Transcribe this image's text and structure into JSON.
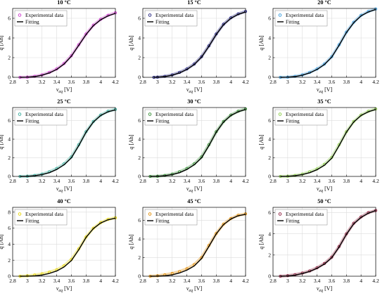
{
  "chart_data": [
    {
      "type": "scatter",
      "title": "10 °C",
      "xlabel": "v_eq [V]",
      "ylabel": "q [Ah]",
      "x_ticks": [
        "2.8",
        "3",
        "3.2",
        "3.4",
        "3.6",
        "3.8",
        "4",
        "4.2"
      ],
      "y_ticks": [
        "0",
        "2",
        "4",
        "6"
      ],
      "xlim": [
        2.8,
        4.2
      ],
      "ylim": [
        0,
        7
      ],
      "legend": [
        "Experimental data",
        "Fitting"
      ],
      "legend_position": "top-left",
      "marker_color": "#cc33cc",
      "grid": true,
      "series": [
        {
          "name": "Experimental data",
          "x": [
            2.9,
            3.0,
            3.1,
            3.2,
            3.3,
            3.4,
            3.5,
            3.6,
            3.7,
            3.8,
            3.9,
            4.0,
            4.1,
            4.2
          ],
          "y": [
            0.0,
            0.02,
            0.1,
            0.25,
            0.5,
            0.85,
            1.4,
            2.2,
            3.3,
            4.4,
            5.3,
            5.9,
            6.3,
            6.55
          ]
        },
        {
          "name": "Fitting",
          "x": [
            2.9,
            3.0,
            3.1,
            3.2,
            3.3,
            3.4,
            3.5,
            3.6,
            3.7,
            3.8,
            3.9,
            4.0,
            4.1,
            4.2
          ],
          "y": [
            0.0,
            0.01,
            0.08,
            0.22,
            0.45,
            0.8,
            1.35,
            2.15,
            3.25,
            4.35,
            5.25,
            5.85,
            6.25,
            6.5
          ]
        }
      ]
    },
    {
      "type": "scatter",
      "title": "15 °C",
      "xlabel": "v_eq [V]",
      "ylabel": "q [Ah]",
      "x_ticks": [
        "2.8",
        "3",
        "3.2",
        "3.4",
        "3.6",
        "3.8",
        "4",
        "4.2"
      ],
      "y_ticks": [
        "0",
        "2",
        "4",
        "6"
      ],
      "xlim": [
        2.8,
        4.2
      ],
      "ylim": [
        0,
        7
      ],
      "legend": [
        "Experimental data",
        "Fitting"
      ],
      "legend_position": "top-left",
      "marker_color": "#1a1a7a",
      "grid": true,
      "series": [
        {
          "name": "Experimental data",
          "x": [
            2.95,
            3.0,
            3.1,
            3.2,
            3.3,
            3.4,
            3.5,
            3.6,
            3.7,
            3.8,
            3.9,
            4.0,
            4.1,
            4.2
          ],
          "y": [
            0.0,
            0.02,
            0.1,
            0.25,
            0.5,
            0.85,
            1.35,
            2.1,
            3.2,
            4.4,
            5.4,
            6.05,
            6.45,
            6.7
          ]
        },
        {
          "name": "Fitting",
          "x": [
            2.95,
            3.0,
            3.1,
            3.2,
            3.3,
            3.4,
            3.5,
            3.6,
            3.7,
            3.8,
            3.9,
            4.0,
            4.1,
            4.2
          ],
          "y": [
            0.0,
            0.01,
            0.08,
            0.22,
            0.45,
            0.8,
            1.3,
            2.05,
            3.15,
            4.35,
            5.35,
            6.0,
            6.4,
            6.65
          ]
        }
      ]
    },
    {
      "type": "scatter",
      "title": "20 °C",
      "xlabel": "v_eq [V]",
      "ylabel": "q [Ah]",
      "x_ticks": [
        "2.8",
        "3",
        "3.2",
        "3.4",
        "3.6",
        "3.8",
        "4",
        "4.2"
      ],
      "y_ticks": [
        "0",
        "2",
        "4",
        "6"
      ],
      "xlim": [
        2.8,
        4.2
      ],
      "ylim": [
        0,
        7
      ],
      "legend": [
        "Experimental data",
        "Fitting"
      ],
      "legend_position": "top-left",
      "marker_color": "#3399dd",
      "grid": true,
      "series": [
        {
          "name": "Experimental data",
          "x": [
            2.9,
            3.0,
            3.1,
            3.2,
            3.3,
            3.4,
            3.5,
            3.6,
            3.7,
            3.8,
            3.9,
            4.0,
            4.1,
            4.2
          ],
          "y": [
            0.0,
            0.02,
            0.1,
            0.25,
            0.5,
            0.85,
            1.35,
            2.1,
            3.3,
            4.6,
            5.6,
            6.3,
            6.7,
            6.95
          ]
        },
        {
          "name": "Fitting",
          "x": [
            2.9,
            3.0,
            3.1,
            3.2,
            3.3,
            3.4,
            3.5,
            3.6,
            3.7,
            3.8,
            3.9,
            4.0,
            4.1,
            4.2
          ],
          "y": [
            0.0,
            0.01,
            0.08,
            0.22,
            0.45,
            0.8,
            1.3,
            2.05,
            3.25,
            4.55,
            5.55,
            6.25,
            6.65,
            6.9
          ]
        }
      ]
    },
    {
      "type": "scatter",
      "title": "25 °C",
      "xlabel": "v_eq [V]",
      "ylabel": "q [Ah]",
      "x_ticks": [
        "2.8",
        "3",
        "3.2",
        "3.4",
        "3.6",
        "3.8",
        "4",
        "4.2"
      ],
      "y_ticks": [
        "0",
        "2",
        "4",
        "6"
      ],
      "xlim": [
        2.8,
        4.2
      ],
      "ylim": [
        0,
        7.4
      ],
      "legend": [
        "Experimental data",
        "Fitting"
      ],
      "legend_position": "top-left",
      "marker_color": "#33aa99",
      "grid": true,
      "series": [
        {
          "name": "Experimental data",
          "x": [
            2.9,
            3.0,
            3.1,
            3.2,
            3.3,
            3.4,
            3.5,
            3.6,
            3.7,
            3.8,
            3.9,
            4.0,
            4.1,
            4.2
          ],
          "y": [
            0.0,
            0.02,
            0.1,
            0.25,
            0.5,
            0.85,
            1.35,
            2.1,
            3.4,
            4.8,
            5.9,
            6.6,
            7.0,
            7.2
          ]
        },
        {
          "name": "Fitting",
          "x": [
            2.9,
            3.0,
            3.1,
            3.2,
            3.3,
            3.4,
            3.5,
            3.6,
            3.7,
            3.8,
            3.9,
            4.0,
            4.1,
            4.2
          ],
          "y": [
            0.0,
            0.01,
            0.08,
            0.2,
            0.4,
            0.75,
            1.25,
            2.0,
            3.3,
            4.75,
            5.85,
            6.55,
            6.95,
            7.15
          ]
        }
      ]
    },
    {
      "type": "scatter",
      "title": "30 °C",
      "xlabel": "v_eq [V]",
      "ylabel": "q [Ah]",
      "x_ticks": [
        "2.8",
        "3",
        "3.2",
        "3.4",
        "3.6",
        "3.8",
        "4",
        "4.2"
      ],
      "y_ticks": [
        "0",
        "2",
        "4",
        "6"
      ],
      "xlim": [
        2.8,
        4.2
      ],
      "ylim": [
        0,
        7.4
      ],
      "legend": [
        "Experimental data",
        "Fitting"
      ],
      "legend_position": "top-left",
      "marker_color": "#2e8b2e",
      "grid": true,
      "series": [
        {
          "name": "Experimental data",
          "x": [
            2.9,
            3.0,
            3.1,
            3.2,
            3.3,
            3.4,
            3.5,
            3.6,
            3.7,
            3.8,
            3.9,
            4.0,
            4.1,
            4.2
          ],
          "y": [
            0.0,
            0.02,
            0.1,
            0.25,
            0.5,
            0.85,
            1.35,
            2.1,
            3.4,
            4.8,
            5.9,
            6.6,
            7.0,
            7.25
          ]
        },
        {
          "name": "Fitting",
          "x": [
            2.9,
            3.0,
            3.1,
            3.2,
            3.3,
            3.4,
            3.5,
            3.6,
            3.7,
            3.8,
            3.9,
            4.0,
            4.1,
            4.2
          ],
          "y": [
            0.0,
            0.01,
            0.08,
            0.2,
            0.4,
            0.75,
            1.25,
            2.0,
            3.3,
            4.75,
            5.85,
            6.55,
            6.95,
            7.2
          ]
        }
      ]
    },
    {
      "type": "scatter",
      "title": "35 °C",
      "xlabel": "v_eq [V]",
      "ylabel": "q [Ah]",
      "x_ticks": [
        "2.8",
        "3",
        "3.2",
        "3.4",
        "3.6",
        "3.8",
        "4",
        "4.2"
      ],
      "y_ticks": [
        "0",
        "2",
        "4",
        "6"
      ],
      "xlim": [
        2.8,
        4.2
      ],
      "ylim": [
        0,
        7.4
      ],
      "legend": [
        "Experimental data",
        "Fitting"
      ],
      "legend_position": "top-left",
      "marker_color": "#88cc44",
      "grid": true,
      "series": [
        {
          "name": "Experimental data",
          "x": [
            2.9,
            3.0,
            3.1,
            3.2,
            3.3,
            3.4,
            3.5,
            3.6,
            3.7,
            3.8,
            3.9,
            4.0,
            4.1,
            4.2
          ],
          "y": [
            0.0,
            0.02,
            0.1,
            0.25,
            0.5,
            0.8,
            1.3,
            2.05,
            3.4,
            4.8,
            5.9,
            6.6,
            7.0,
            7.25
          ]
        },
        {
          "name": "Fitting",
          "x": [
            2.9,
            3.0,
            3.1,
            3.2,
            3.3,
            3.4,
            3.5,
            3.6,
            3.7,
            3.8,
            3.9,
            4.0,
            4.1,
            4.2
          ],
          "y": [
            0.0,
            0.01,
            0.08,
            0.2,
            0.4,
            0.72,
            1.2,
            1.95,
            3.3,
            4.75,
            5.85,
            6.55,
            6.95,
            7.2
          ]
        }
      ]
    },
    {
      "type": "scatter",
      "title": "40 °C",
      "xlabel": "v_eq [V]",
      "ylabel": "q [Ah]",
      "x_ticks": [
        "2.8",
        "3",
        "3.2",
        "3.4",
        "3.6",
        "3.8",
        "4",
        "4.2"
      ],
      "y_ticks": [
        "0",
        "2",
        "4",
        "6",
        "8"
      ],
      "xlim": [
        2.8,
        4.2
      ],
      "ylim": [
        0,
        8.6
      ],
      "legend": [
        "Experimental data",
        "Fitting"
      ],
      "legend_position": "top-left",
      "marker_color": "#e6d400",
      "grid": true,
      "series": [
        {
          "name": "Experimental data",
          "x": [
            2.9,
            3.0,
            3.1,
            3.2,
            3.3,
            3.4,
            3.5,
            3.6,
            3.7,
            3.8,
            3.9,
            4.0,
            4.1,
            4.2
          ],
          "y": [
            0.0,
            0.05,
            0.15,
            0.3,
            0.5,
            0.8,
            1.3,
            2.1,
            3.4,
            4.9,
            6.0,
            6.7,
            7.1,
            7.3
          ]
        },
        {
          "name": "Fitting",
          "x": [
            2.9,
            3.0,
            3.1,
            3.2,
            3.3,
            3.4,
            3.5,
            3.6,
            3.7,
            3.8,
            3.9,
            4.0,
            4.1,
            4.2
          ],
          "y": [
            0.0,
            0.01,
            0.05,
            0.15,
            0.35,
            0.65,
            1.15,
            1.95,
            3.3,
            4.85,
            5.95,
            6.65,
            7.05,
            7.25
          ]
        }
      ]
    },
    {
      "type": "scatter",
      "title": "45 °C",
      "xlabel": "v_eq [V]",
      "ylabel": "q [Ah]",
      "x_ticks": [
        "2.8",
        "3",
        "3.2",
        "3.4",
        "3.6",
        "3.8",
        "4",
        "4.2"
      ],
      "y_ticks": [
        "0",
        "2",
        "4",
        "6"
      ],
      "xlim": [
        2.8,
        4.2
      ],
      "ylim": [
        0,
        7.4
      ],
      "legend": [
        "Experimental data",
        "Fitting"
      ],
      "legend_position": "top-left",
      "marker_color": "#e08a00",
      "grid": true,
      "series": [
        {
          "name": "Experimental data",
          "x": [
            2.9,
            3.0,
            3.1,
            3.2,
            3.3,
            3.4,
            3.5,
            3.6,
            3.7,
            3.8,
            3.9,
            4.0,
            4.1,
            4.2
          ],
          "y": [
            0.0,
            0.05,
            0.15,
            0.3,
            0.5,
            0.8,
            1.25,
            2.0,
            3.3,
            4.6,
            5.6,
            6.2,
            6.55,
            6.7
          ]
        },
        {
          "name": "Fitting",
          "x": [
            2.9,
            3.0,
            3.1,
            3.2,
            3.3,
            3.4,
            3.5,
            3.6,
            3.7,
            3.8,
            3.9,
            4.0,
            4.1,
            4.2
          ],
          "y": [
            0.0,
            0.01,
            0.05,
            0.15,
            0.35,
            0.65,
            1.1,
            1.9,
            3.2,
            4.55,
            5.55,
            6.15,
            6.5,
            6.65
          ]
        }
      ]
    },
    {
      "type": "scatter",
      "title": "50 °C",
      "xlabel": "v_eq [V]",
      "ylabel": "q [Ah]",
      "x_ticks": [
        "2.8",
        "3",
        "3.2",
        "3.4",
        "3.6",
        "3.8",
        "4",
        "4.2"
      ],
      "y_ticks": [
        "0",
        "2",
        "4",
        "6"
      ],
      "xlim": [
        2.8,
        4.2
      ],
      "ylim": [
        0,
        6.5
      ],
      "legend": [
        "Experimental data",
        "Fitting"
      ],
      "legend_position": "top-left",
      "marker_color": "#8b1a3a",
      "grid": true,
      "series": [
        {
          "name": "Experimental data",
          "x": [
            2.9,
            3.0,
            3.1,
            3.2,
            3.3,
            3.4,
            3.5,
            3.6,
            3.7,
            3.8,
            3.9,
            4.0,
            4.1,
            4.2
          ],
          "y": [
            0.0,
            0.05,
            0.15,
            0.3,
            0.5,
            0.8,
            1.2,
            1.8,
            2.8,
            4.0,
            5.0,
            5.6,
            6.0,
            6.2
          ]
        },
        {
          "name": "Fitting",
          "x": [
            2.9,
            3.0,
            3.1,
            3.2,
            3.3,
            3.4,
            3.5,
            3.6,
            3.7,
            3.8,
            3.9,
            4.0,
            4.1,
            4.2
          ],
          "y": [
            0.0,
            0.02,
            0.1,
            0.25,
            0.45,
            0.75,
            1.15,
            1.75,
            2.75,
            3.95,
            4.95,
            5.55,
            5.95,
            6.2
          ]
        }
      ]
    }
  ]
}
